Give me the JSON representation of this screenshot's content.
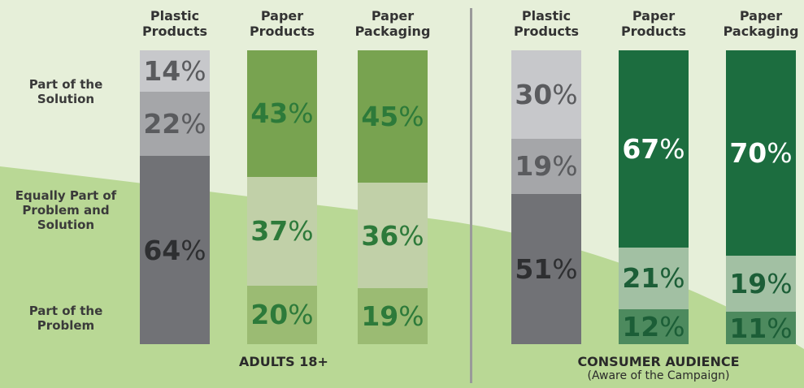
{
  "chart_data": {
    "type": "stacked-bar",
    "unit": "%",
    "row_labels": [
      "Part of the Solution",
      "Equally Part of Problem and Solution",
      "Part of the Problem"
    ],
    "groups": [
      {
        "label": "ADULTS 18+",
        "sublabel": "",
        "bars": [
          {
            "category": "Plastic Products",
            "solution": 14,
            "equal": 22,
            "problem": 64
          },
          {
            "category": "Paper Products",
            "solution": 43,
            "equal": 37,
            "problem": 20
          },
          {
            "category": "Paper Packaging",
            "solution": 45,
            "equal": 36,
            "problem": 19
          }
        ]
      },
      {
        "label": "CONSUMER AUDIENCE",
        "sublabel": "(Aware of the Campaign)",
        "bars": [
          {
            "category": "Plastic Products",
            "solution": 30,
            "equal": 19,
            "problem": 51
          },
          {
            "category": "Paper Products",
            "solution": 67,
            "equal": 21,
            "problem": 12
          },
          {
            "category": "Paper Packaging",
            "solution": 70,
            "equal": 19,
            "problem": 11
          }
        ]
      }
    ],
    "colors": {
      "plastic_solution": "#c7c8cb",
      "plastic_equal": "#a5a6a9",
      "plastic_problem": "#717276",
      "plastic_text_light": "#5a5b5e",
      "plastic_text_dark": "#2e2f31",
      "adults_paper_solution": "#78a350",
      "adults_paper_equal": "#c1d0a8",
      "adults_paper_problem": "#9bbb73",
      "adults_paper_text": "#2d7a3a",
      "consumer_paper_solution": "#1c6d3f",
      "consumer_paper_equal": "#a2c0a3",
      "consumer_paper_problem": "#4d8a5e",
      "consumer_paper_text": "#1c5e37",
      "background_light": "#e6efd9",
      "background_green": "#b9d895",
      "divider": "#9a9a9a"
    }
  }
}
